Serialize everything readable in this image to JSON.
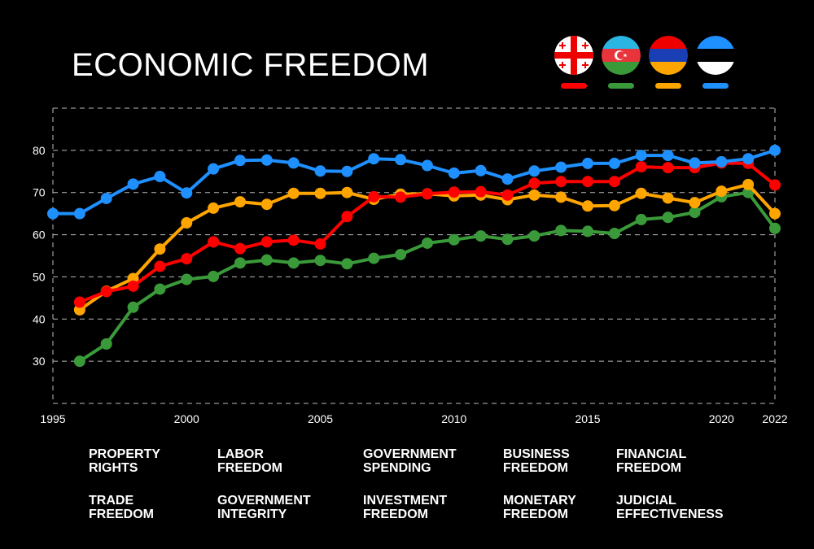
{
  "title": "ECONOMIC FREEDOM",
  "legend": [
    {
      "flag": "georgia-flag",
      "color": "#ff0000"
    },
    {
      "flag": "azerbaijan-flag",
      "color": "#3a9a3a"
    },
    {
      "flag": "armenia-flag",
      "color": "#ffa500"
    },
    {
      "flag": "estonia-flag",
      "color": "#1e90ff"
    }
  ],
  "categories": [
    "PROPERTY\nRIGHTS",
    "LABOR\nFREEDOM",
    "GOVERNMENT\nSPENDING",
    "BUSINESS\nFREEDOM",
    "FINANCIAL\nFREEDOM",
    "TRADE\nFREEDOM",
    "GOVERNMENT\nINTEGRITY",
    "INVESTMENT\nFREEDOM",
    "MONETARY\nFREEDOM",
    "JUDICIAL\nEFFECTIVENESS"
  ],
  "chart_data": {
    "type": "line",
    "title": "ECONOMIC FREEDOM",
    "xlabel": "",
    "ylabel": "",
    "xlim": [
      1995,
      2022
    ],
    "ylim": [
      20,
      90
    ],
    "x_ticks": [
      "1995",
      "2000",
      "2005",
      "2010",
      "2015",
      "2020",
      "2022"
    ],
    "y_ticks": [
      "30",
      "40",
      "50",
      "60",
      "70",
      "80"
    ],
    "grid": true,
    "legend_position": "top-right",
    "series": [
      {
        "color": "#1e90ff",
        "x": [
          1995,
          1996,
          1997,
          1998,
          1999,
          2000,
          2001,
          2002,
          2003,
          2004,
          2005,
          2006,
          2007,
          2008,
          2009,
          2010,
          2011,
          2012,
          2013,
          2014,
          2015,
          2016,
          2017,
          2018,
          2019,
          2020,
          2021,
          2022
        ],
        "values": [
          65,
          65,
          68.6,
          72,
          73.8,
          69.9,
          75.6,
          77.6,
          77.7,
          77.0,
          75.1,
          75.0,
          78.0,
          77.8,
          76.4,
          74.6,
          75.2,
          73.2,
          75.1,
          76.0,
          76.9,
          76.9,
          78.8,
          78.8,
          77.0,
          77.3,
          78.0,
          80.0
        ]
      },
      {
        "color": "#ff0000",
        "x": [
          1996,
          1997,
          1998,
          1999,
          2000,
          2001,
          2002,
          2003,
          2004,
          2005,
          2006,
          2007,
          2008,
          2009,
          2010,
          2011,
          2012,
          2013,
          2014,
          2015,
          2016,
          2017,
          2018,
          2019,
          2020,
          2021,
          2022
        ],
        "values": [
          44,
          46.5,
          47.8,
          52.5,
          54.3,
          58.3,
          56.7,
          58.3,
          58.7,
          57.8,
          64.3,
          69.0,
          68.9,
          69.7,
          70.1,
          70.2,
          69.4,
          72.2,
          72.6,
          72.6,
          72.6,
          76.1,
          75.9,
          75.9,
          77.0,
          76.9,
          71.8
        ]
      },
      {
        "color": "#ffa500",
        "x": [
          1996,
          1997,
          1998,
          1999,
          2000,
          2001,
          2002,
          2003,
          2004,
          2005,
          2006,
          2007,
          2008,
          2009,
          2010,
          2011,
          2012,
          2013,
          2014,
          2015,
          2016,
          2017,
          2018,
          2019,
          2020,
          2021,
          2022
        ],
        "values": [
          42.2,
          46.6,
          49.6,
          56.6,
          62.8,
          66.3,
          67.8,
          67.2,
          69.8,
          69.8,
          70.0,
          68.4,
          69.6,
          69.7,
          69.2,
          69.4,
          68.3,
          69.4,
          68.9,
          66.8,
          66.9,
          69.8,
          68.7,
          67.6,
          70.3,
          71.9,
          65.0
        ]
      },
      {
        "color": "#3a9a3a",
        "x": [
          1996,
          1997,
          1998,
          1999,
          2000,
          2001,
          2002,
          2003,
          2004,
          2005,
          2006,
          2007,
          2008,
          2009,
          2010,
          2011,
          2012,
          2013,
          2014,
          2015,
          2016,
          2017,
          2018,
          2019,
          2020,
          2021,
          2022
        ],
        "values": [
          30,
          34.1,
          42.8,
          47.1,
          49.4,
          50.1,
          53.3,
          54.0,
          53.3,
          53.9,
          53.1,
          54.4,
          55.3,
          58.0,
          58.8,
          59.7,
          58.9,
          59.7,
          61.0,
          60.8,
          60.3,
          63.6,
          64.1,
          65.3,
          69.0,
          70.0,
          61.5
        ]
      }
    ]
  }
}
